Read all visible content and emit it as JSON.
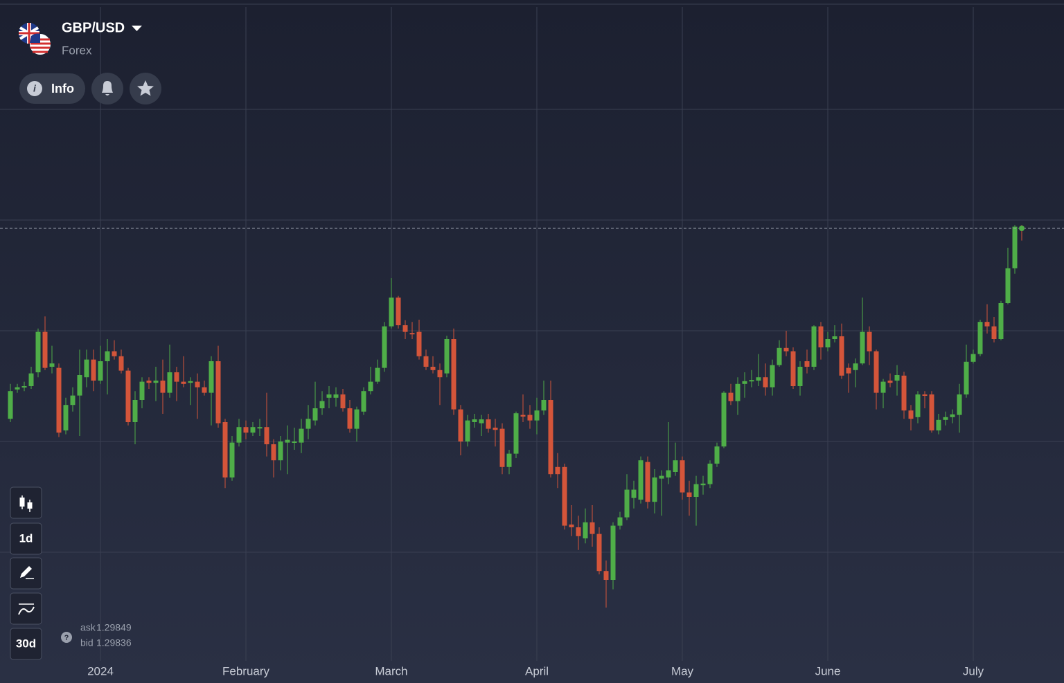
{
  "ui": {
    "symbol": "GBP/USD",
    "market": "Forex",
    "info": "Info",
    "timeframe": "1d",
    "period": "30d",
    "ask_label": "ask",
    "ask": 1.29849,
    "bid_label": "bid",
    "bid": 1.29836
  },
  "chart_data": {
    "type": "candlestick",
    "up_color": "#4fae48",
    "down_color": "#d4553a",
    "grid": true,
    "ylim": [
      1.22,
      1.34
    ],
    "yticks": [
      1.24,
      1.26,
      1.28,
      1.3,
      1.32
    ],
    "categories": [
      null,
      null,
      null,
      null,
      null,
      null,
      null,
      null,
      null,
      null,
      null,
      null,
      null,
      "2024",
      null,
      null,
      null,
      null,
      null,
      null,
      null,
      null,
      null,
      null,
      null,
      null,
      null,
      null,
      null,
      null,
      null,
      null,
      null,
      null,
      "February",
      null,
      null,
      null,
      null,
      null,
      null,
      null,
      null,
      null,
      null,
      null,
      null,
      null,
      null,
      null,
      null,
      null,
      null,
      null,
      null,
      "March",
      null,
      null,
      null,
      null,
      null,
      null,
      null,
      null,
      null,
      null,
      null,
      null,
      null,
      null,
      null,
      null,
      null,
      null,
      null,
      null,
      "April",
      null,
      null,
      null,
      null,
      null,
      null,
      null,
      null,
      null,
      null,
      null,
      null,
      null,
      null,
      null,
      null,
      null,
      null,
      null,
      null,
      "May",
      null,
      null,
      null,
      null,
      null,
      null,
      null,
      null,
      null,
      null,
      null,
      null,
      null,
      null,
      null,
      null,
      null,
      null,
      null,
      null,
      "June",
      null,
      null,
      null,
      null,
      null,
      null,
      null,
      null,
      null,
      null,
      null,
      null,
      null,
      null,
      null,
      null,
      null,
      null,
      null,
      null,
      "July",
      null,
      null,
      null,
      null,
      null,
      null,
      null
    ],
    "open": [
      1.2641,
      1.2694,
      1.2698,
      1.27,
      1.2725,
      1.2798,
      1.2735,
      1.2733,
      1.262,
      1.2666,
      1.2683,
      1.2716,
      1.2748,
      1.271,
      1.2745,
      1.2763,
      1.2754,
      1.2728,
      1.2635,
      1.2675,
      1.271,
      1.2706,
      1.271,
      1.2688,
      1.2725,
      1.2708,
      1.2706,
      1.2708,
      1.2698,
      1.2688,
      1.2745,
      1.2635,
      1.2535,
      1.2598,
      1.2626,
      1.2616,
      1.2624,
      1.2626,
      1.2595,
      1.2566,
      1.2598,
      1.2598,
      1.2598,
      1.2623,
      1.2638,
      1.266,
      1.2679,
      1.2679,
      1.2685,
      1.266,
      1.2623,
      1.2654,
      1.2691,
      1.2708,
      1.2733,
      1.2808,
      1.286,
      1.281,
      1.2796,
      1.2798,
      1.2754,
      1.2735,
      1.2729,
      1.2723,
      1.2785,
      1.2658,
      1.26,
      1.2635,
      1.2633,
      1.264,
      1.2625,
      1.2623,
      1.2554,
      1.2578,
      1.2648,
      1.2648,
      1.2638,
      1.2656,
      1.2675,
      1.2554,
      1.2554,
      1.245,
      1.2445,
      1.2425,
      1.2454,
      1.2433,
      1.2366,
      1.235,
      1.2448,
      1.2463,
      1.2498,
      1.2495,
      1.2563,
      1.2491,
      1.2533,
      1.2535,
      1.2545,
      1.2566,
      1.2508,
      1.25,
      1.2521,
      1.2523,
      1.256,
      1.2591,
      1.2688,
      1.2673,
      1.2704,
      1.2709,
      1.271,
      1.2716,
      1.2698,
      1.2738,
      1.2769,
      1.2763,
      1.27,
      1.2745,
      1.2735,
      1.2808,
      1.277,
      1.2785,
      1.279,
      1.2733,
      1.2729,
      1.2741,
      1.2798,
      1.2763,
      1.2688,
      1.271,
      1.271,
      1.2719,
      1.2656,
      1.2644,
      1.2685,
      1.2685,
      1.262,
      1.2639,
      1.2644,
      1.2648,
      1.2685,
      1.2744,
      1.2758,
      1.2816,
      1.2808,
      1.2785,
      1.285,
      1.2913,
      1.2988
    ],
    "high": [
      1.2704,
      1.2704,
      1.2708,
      1.2735,
      1.2804,
      1.2826,
      1.2773,
      1.2741,
      1.2679,
      1.2698,
      1.2766,
      1.2766,
      1.2766,
      1.2773,
      1.2785,
      1.2783,
      1.2766,
      1.2733,
      1.2691,
      1.2716,
      1.2716,
      1.2735,
      1.2748,
      1.2775,
      1.2735,
      1.2754,
      1.2716,
      1.2723,
      1.271,
      1.2754,
      1.2773,
      1.2641,
      1.261,
      1.2641,
      1.2638,
      1.2635,
      1.2641,
      1.2688,
      1.2604,
      1.261,
      1.2629,
      1.2625,
      1.2641,
      1.2666,
      1.2708,
      1.2691,
      1.27,
      1.2698,
      1.2695,
      1.2675,
      1.2663,
      1.2698,
      1.2735,
      1.2748,
      1.2816,
      1.2895,
      1.2863,
      1.2819,
      1.2816,
      1.282,
      1.2766,
      1.2754,
      1.2741,
      1.2791,
      1.2804,
      1.2666,
      1.2648,
      1.265,
      1.2648,
      1.265,
      1.2641,
      1.2633,
      1.2585,
      1.2654,
      1.2685,
      1.2666,
      1.2679,
      1.271,
      1.271,
      1.2579,
      1.256,
      1.2485,
      1.2466,
      1.2479,
      1.2485,
      1.2445,
      1.2385,
      1.2454,
      1.2473,
      1.2541,
      1.2529,
      1.2573,
      1.2573,
      1.255,
      1.2548,
      1.2635,
      1.2598,
      1.2573,
      1.2529,
      1.2538,
      1.2538,
      1.2566,
      1.2598,
      1.2691,
      1.2704,
      1.2716,
      1.2725,
      1.2729,
      1.2758,
      1.2741,
      1.2748,
      1.2783,
      1.28,
      1.277,
      1.2745,
      1.2766,
      1.281,
      1.2816,
      1.2798,
      1.281,
      1.2813,
      1.2741,
      1.275,
      1.286,
      1.2808,
      1.2766,
      1.2713,
      1.2723,
      1.2738,
      1.2726,
      1.2666,
      1.2691,
      1.2691,
      1.2691,
      1.265,
      1.2654,
      1.2658,
      1.2704,
      1.2775,
      1.2766,
      1.282,
      1.2848,
      1.2825,
      1.2854,
      1.295,
      1.2991,
      1.2991
    ],
    "low": [
      1.2635,
      1.2688,
      1.2691,
      1.2695,
      1.2716,
      1.2729,
      1.2723,
      1.2608,
      1.2613,
      1.2654,
      1.261,
      1.2698,
      1.2691,
      1.2704,
      1.2685,
      1.2748,
      1.2723,
      1.2629,
      1.2595,
      1.266,
      1.2695,
      1.2673,
      1.265,
      1.2679,
      1.2673,
      1.2698,
      1.2666,
      1.2641,
      1.2683,
      1.2629,
      1.2625,
      1.2516,
      1.2529,
      1.2591,
      1.2604,
      1.261,
      1.261,
      1.2573,
      1.2535,
      1.2548,
      1.2541,
      1.2585,
      1.2579,
      1.2604,
      1.2629,
      1.2648,
      1.266,
      1.2663,
      1.2654,
      1.2616,
      1.26,
      1.2648,
      1.2685,
      1.2704,
      1.2726,
      1.2804,
      1.2804,
      1.2785,
      1.2785,
      1.2748,
      1.2729,
      1.2723,
      1.2666,
      1.2716,
      1.2648,
      1.2575,
      1.2591,
      1.2625,
      1.261,
      1.2616,
      1.2591,
      1.2541,
      1.2541,
      1.257,
      1.2635,
      1.2623,
      1.2613,
      1.2648,
      1.2535,
      1.2516,
      1.2441,
      1.2429,
      1.2404,
      1.2416,
      1.241,
      1.236,
      1.23,
      1.2333,
      1.2441,
      1.2458,
      1.2479,
      1.2488,
      1.2479,
      1.247,
      1.2466,
      1.2523,
      1.2538,
      1.2495,
      1.2466,
      1.2448,
      1.2504,
      1.2516,
      1.2554,
      1.2588,
      1.2666,
      1.2648,
      1.2679,
      1.2698,
      1.27,
      1.2683,
      1.2683,
      1.2735,
      1.2754,
      1.2695,
      1.2683,
      1.2723,
      1.2729,
      1.2748,
      1.2763,
      1.2779,
      1.2713,
      1.2688,
      1.2698,
      1.2738,
      1.2738,
      1.2658,
      1.266,
      1.2698,
      1.2683,
      1.2641,
      1.262,
      1.2633,
      1.266,
      1.2616,
      1.2613,
      1.2629,
      1.2633,
      1.2616,
      1.2679,
      1.2741,
      1.2754,
      1.2795,
      1.2779,
      1.2783,
      1.2848,
      1.2903,
      1.2963
    ],
    "close": [
      1.2691,
      1.2698,
      1.27,
      1.2723,
      1.2798,
      1.2733,
      1.2741,
      1.2616,
      1.2666,
      1.2683,
      1.272,
      1.2748,
      1.271,
      1.2745,
      1.2763,
      1.2754,
      1.2728,
      1.2635,
      1.2675,
      1.2708,
      1.2706,
      1.271,
      1.2688,
      1.2725,
      1.2708,
      1.2704,
      1.2709,
      1.2698,
      1.2688,
      1.2745,
      1.2633,
      1.2535,
      1.2598,
      1.2626,
      1.2616,
      1.2626,
      1.2626,
      1.2595,
      1.2566,
      1.26,
      1.2603,
      1.26,
      1.2623,
      1.2641,
      1.266,
      1.2673,
      1.2685,
      1.2685,
      1.266,
      1.2623,
      1.2658,
      1.2691,
      1.2708,
      1.2733,
      1.2808,
      1.286,
      1.281,
      1.2798,
      1.2794,
      1.2754,
      1.2735,
      1.2729,
      1.2716,
      1.2785,
      1.2658,
      1.26,
      1.2638,
      1.264,
      1.264,
      1.2623,
      1.2621,
      1.2554,
      1.2578,
      1.2651,
      1.2645,
      1.2638,
      1.2656,
      1.2675,
      1.2541,
      1.2541,
      1.2448,
      1.2445,
      1.2429,
      1.2454,
      1.2433,
      1.2366,
      1.235,
      1.2448,
      1.2463,
      1.2513,
      1.2513,
      1.2566,
      1.2491,
      1.2535,
      1.2538,
      1.2548,
      1.2566,
      1.2508,
      1.25,
      1.2523,
      1.2524,
      1.256,
      1.2591,
      1.2688,
      1.2673,
      1.2704,
      1.2709,
      1.2711,
      1.2716,
      1.2698,
      1.2738,
      1.2769,
      1.2763,
      1.27,
      1.2735,
      1.2735,
      1.2808,
      1.277,
      1.2785,
      1.279,
      1.2719,
      1.2723,
      1.2741,
      1.2798,
      1.2763,
      1.2688,
      1.2708,
      1.2706,
      1.272,
      1.2656,
      1.2641,
      1.2685,
      1.2683,
      1.262,
      1.2639,
      1.2644,
      1.2649,
      1.2685,
      1.2744,
      1.2758,
      1.2816,
      1.2808,
      1.2785,
      1.285,
      1.2913,
      1.2988,
      1.2985
    ]
  }
}
